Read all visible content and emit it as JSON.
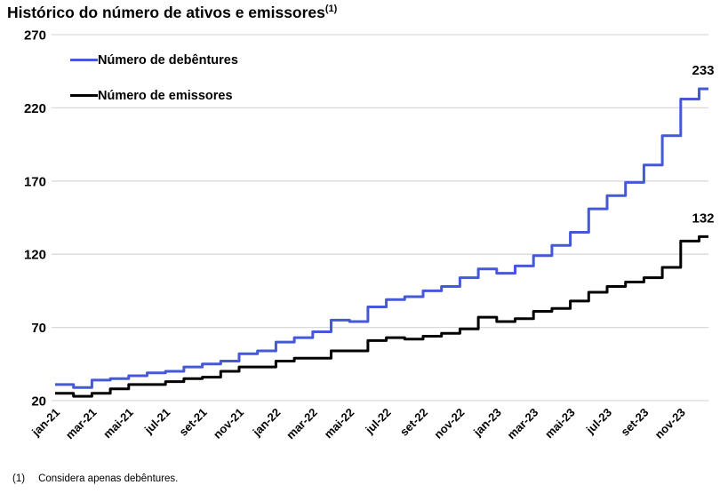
{
  "header": {
    "title": "Histórico do número de ativos e emissores",
    "superscript": "(1)"
  },
  "footnote": {
    "marker": "(1)",
    "text": "Considera apenas debêntures."
  },
  "colors": {
    "debentures_line": "#4458D8",
    "emissores_line": "#000000",
    "gridline": "#D9D9D9",
    "text": "#000000",
    "background": "#FFFFFF"
  },
  "chart_data": {
    "type": "line",
    "interpolation": "step-after",
    "title": "Histórico do número de ativos e emissores (1)",
    "xlabel": "",
    "ylabel": "",
    "ylim": [
      20,
      270
    ],
    "y_ticks": [
      20,
      70,
      120,
      170,
      220,
      270
    ],
    "grid": "horizontal",
    "legend_position": "top-left-inside",
    "x": [
      "jan-21",
      "fev-21",
      "mar-21",
      "abr-21",
      "mai-21",
      "jun-21",
      "jul-21",
      "ago-21",
      "set-21",
      "out-21",
      "nov-21",
      "dez-21",
      "jan-22",
      "fev-22",
      "mar-22",
      "abr-22",
      "mai-22",
      "jun-22",
      "jul-22",
      "ago-22",
      "set-22",
      "out-22",
      "nov-22",
      "dez-22",
      "jan-23",
      "fev-23",
      "mar-23",
      "abr-23",
      "mai-23",
      "jun-23",
      "jul-23",
      "ago-23",
      "set-23",
      "out-23",
      "nov-23",
      "dez-23"
    ],
    "x_tick_labels": [
      "jan-21",
      "mar-21",
      "mai-21",
      "jul-21",
      "set-21",
      "nov-21",
      "jan-22",
      "mar-22",
      "mai-22",
      "jul-22",
      "set-22",
      "nov-22",
      "jan-23",
      "mar-23",
      "mai-23",
      "jul-23",
      "set-23",
      "nov-23"
    ],
    "x_tick_step": 2,
    "series": [
      {
        "name": "Número de debêntures",
        "color": "#4458D8",
        "end_label": "233",
        "values": [
          31,
          29,
          34,
          35,
          37,
          39,
          40,
          43,
          45,
          47,
          52,
          54,
          60,
          63,
          67,
          75,
          74,
          84,
          89,
          91,
          95,
          98,
          104,
          110,
          107,
          112,
          119,
          126,
          135,
          151,
          160,
          169,
          181,
          201,
          226,
          233
        ]
      },
      {
        "name": "Número de emissores",
        "color": "#000000",
        "end_label": "132",
        "values": [
          25,
          23,
          25,
          28,
          31,
          31,
          33,
          35,
          36,
          40,
          43,
          43,
          47,
          49,
          49,
          54,
          54,
          61,
          63,
          62,
          64,
          66,
          69,
          77,
          74,
          76,
          81,
          83,
          88,
          94,
          98,
          101,
          104,
          111,
          129,
          132
        ]
      }
    ]
  }
}
